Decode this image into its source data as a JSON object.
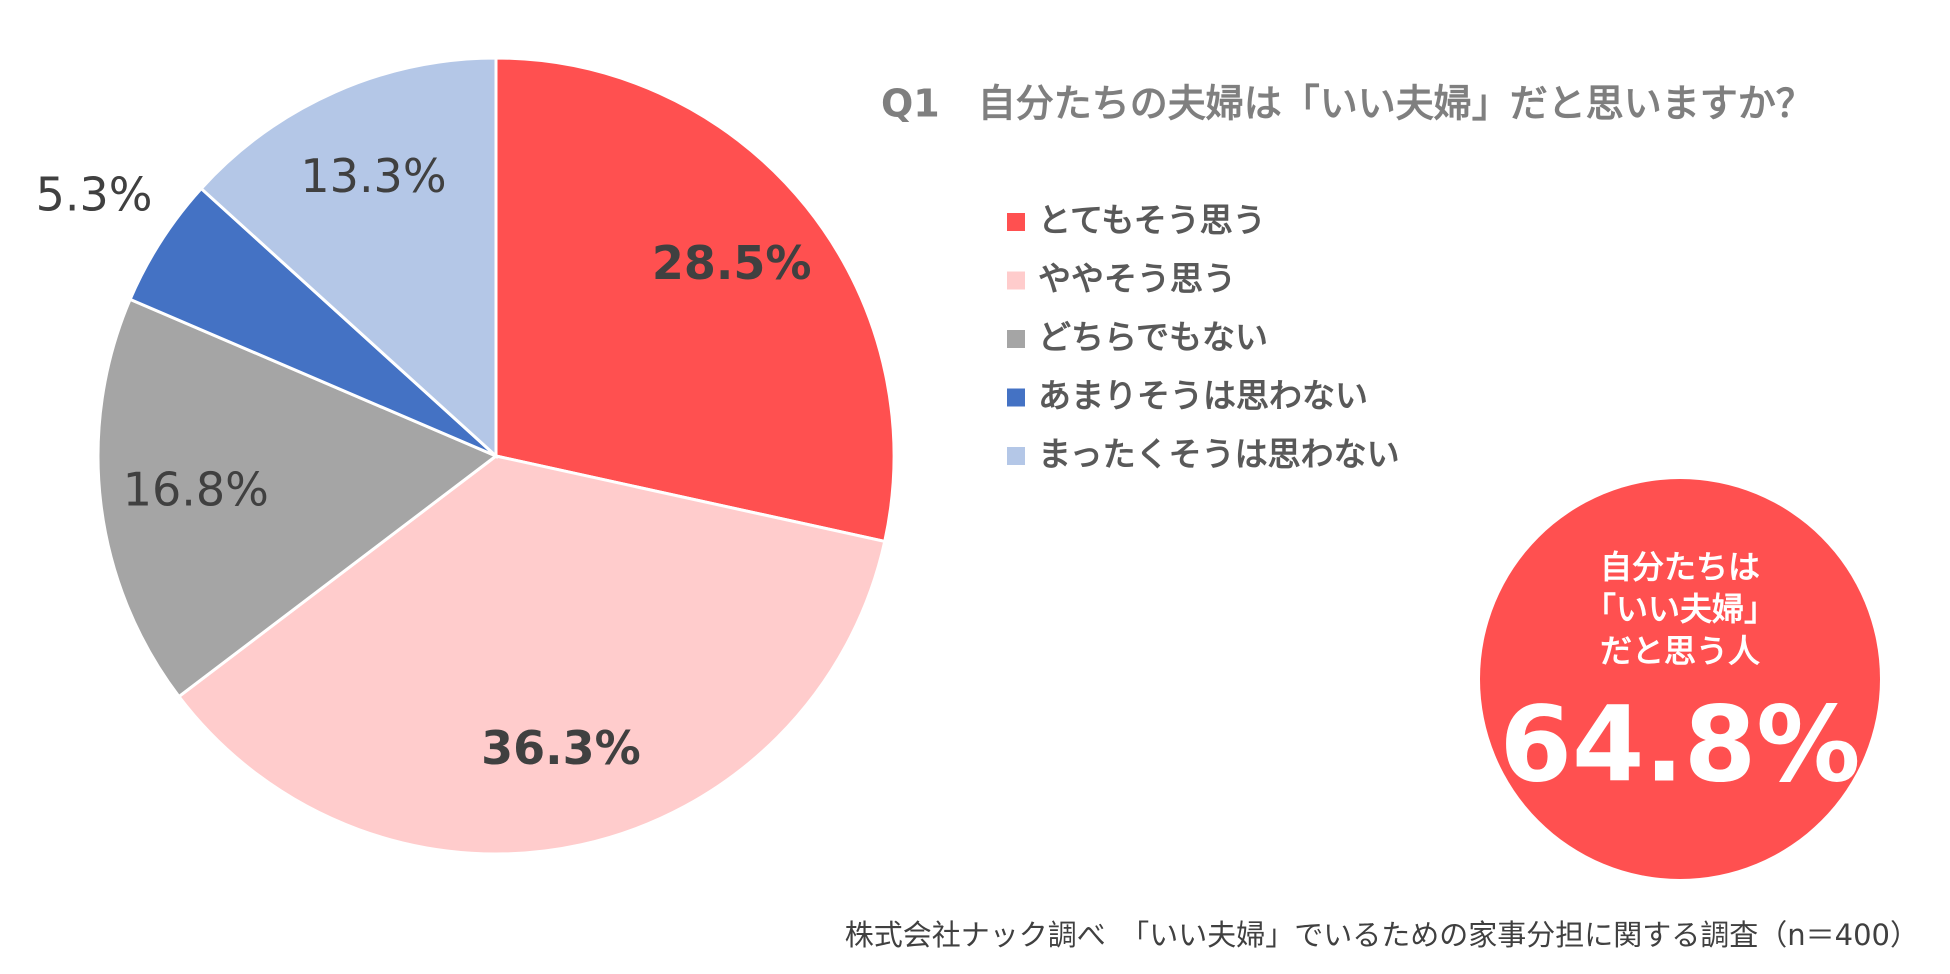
{
  "chart_data": {
    "type": "pie",
    "title": "Q1　自分たちの夫婦は「いい夫婦」だと思いますか？",
    "categories": [
      "とてもそう思う",
      "ややそう思う",
      "どちらでもない",
      "あまりそうは思わない",
      "まったくそうは思わない"
    ],
    "values": [
      28.5,
      36.3,
      16.8,
      5.3,
      13.3
    ],
    "value_labels": [
      "28.5%",
      "36.3%",
      "16.8%",
      "5.3%",
      "13.3%"
    ],
    "colors": [
      "#ff5050",
      "#ffcccc",
      "#a5a5a5",
      "#4472c4",
      "#b4c7e7"
    ],
    "callout": {
      "lines": [
        "自分たちは",
        "「いい夫婦」",
        "だと思う人"
      ],
      "value": "64.8%"
    },
    "source": "株式会社ナック調べ　「いい夫婦」でいるための家事分担に関する調査（n＝400）"
  }
}
